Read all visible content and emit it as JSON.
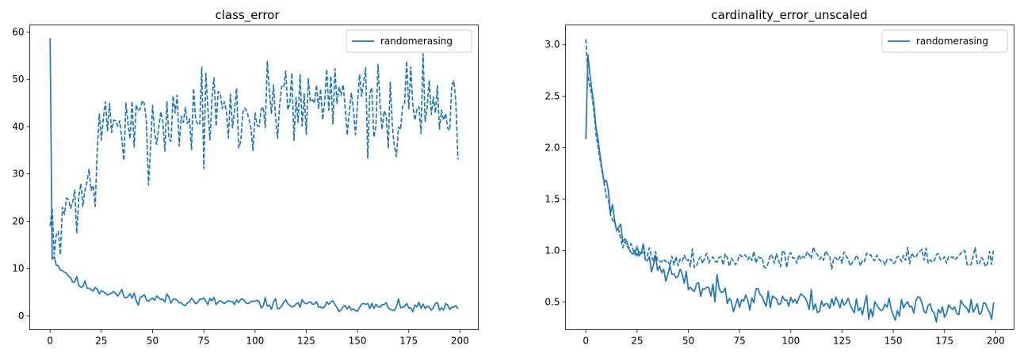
{
  "colors": {
    "series": "#1f77b4",
    "axis": "#000000",
    "legend_border": "#cccccc"
  },
  "chart_data": [
    {
      "type": "line",
      "title": "class_error",
      "xlabel": "",
      "ylabel": "",
      "xlim": [
        -9.95,
        208.95
      ],
      "ylim": [
        -2.93,
        61.5
      ],
      "xticks": [
        0,
        25,
        50,
        75,
        100,
        125,
        150,
        175,
        200
      ],
      "yticks": [
        0,
        10,
        20,
        30,
        40,
        50,
        60
      ],
      "legend": {
        "placement": "top-right",
        "entries": [
          {
            "label": "randomerasing",
            "style": "solid"
          }
        ]
      },
      "series": [
        {
          "name": "randomerasing",
          "style": "solid",
          "anchors": [
            [
              0,
              58.7
            ],
            [
              1,
              12.0
            ],
            [
              2,
              12.5
            ],
            [
              3,
              11.0
            ],
            [
              5,
              10.0
            ],
            [
              8,
              9.0
            ],
            [
              10,
              8.0
            ],
            [
              15,
              6.5
            ],
            [
              20,
              6.0
            ],
            [
              25,
              5.5
            ],
            [
              30,
              4.8
            ],
            [
              40,
              4.0
            ],
            [
              50,
              3.6
            ],
            [
              75,
              3.0
            ],
            [
              100,
              2.6
            ],
            [
              125,
              2.3
            ],
            [
              150,
              2.0
            ],
            [
              175,
              1.8
            ],
            [
              199,
              1.4
            ]
          ],
          "noise": 0.6,
          "seed": 11
        },
        {
          "name": "",
          "style": "dashed",
          "anchors": [
            [
              0,
              19.0
            ],
            [
              1,
              22.8
            ],
            [
              2,
              13.0
            ],
            [
              3,
              16.0
            ],
            [
              5,
              17.0
            ],
            [
              8,
              23.0
            ],
            [
              12,
              26.0
            ],
            [
              15,
              25.0
            ],
            [
              20,
              28.0
            ],
            [
              25,
              38.0
            ],
            [
              30,
              42.0
            ],
            [
              40,
              38.0
            ],
            [
              50,
              41.0
            ],
            [
              60,
              42.0
            ],
            [
              75,
              43.0
            ],
            [
              100,
              41.5
            ],
            [
              115,
              48.0
            ],
            [
              125,
              44.0
            ],
            [
              142,
              50.0
            ],
            [
              150,
              44.0
            ],
            [
              165,
              40.0
            ],
            [
              175,
              46.0
            ],
            [
              190,
              44.0
            ],
            [
              199,
              41.0
            ]
          ],
          "noise": 5.0,
          "seed": 7
        }
      ]
    },
    {
      "type": "line",
      "title": "cardinality_error_unscaled",
      "xlabel": "",
      "ylabel": "",
      "xlim": [
        -9.95,
        208.95
      ],
      "ylim": [
        0.233,
        3.19
      ],
      "xticks": [
        0,
        25,
        50,
        75,
        100,
        125,
        150,
        175,
        200
      ],
      "yticks": [
        0.5,
        1.0,
        1.5,
        2.0,
        2.5,
        3.0
      ],
      "ytick_labels": [
        "0.5",
        "1.0",
        "1.5",
        "2.0",
        "2.5",
        "3.0"
      ],
      "legend": {
        "placement": "top-right",
        "entries": [
          {
            "label": "randomerasing",
            "style": "solid"
          }
        ]
      },
      "series": [
        {
          "name": "randomerasing",
          "style": "solid",
          "anchors": [
            [
              0,
              2.08
            ],
            [
              1,
              2.9
            ],
            [
              3,
              2.55
            ],
            [
              5,
              2.2
            ],
            [
              8,
              1.8
            ],
            [
              10,
              1.6
            ],
            [
              15,
              1.25
            ],
            [
              20,
              1.1
            ],
            [
              25,
              1.0
            ],
            [
              30,
              0.9
            ],
            [
              40,
              0.78
            ],
            [
              50,
              0.68
            ],
            [
              60,
              0.62
            ],
            [
              75,
              0.55
            ],
            [
              100,
              0.52
            ],
            [
              125,
              0.48
            ],
            [
              150,
              0.45
            ],
            [
              175,
              0.44
            ],
            [
              199,
              0.41
            ]
          ],
          "noise": 0.06,
          "seed": 23
        },
        {
          "name": "",
          "style": "dashed",
          "anchors": [
            [
              0,
              3.05
            ],
            [
              1,
              2.7
            ],
            [
              3,
              2.5
            ],
            [
              5,
              2.15
            ],
            [
              8,
              1.75
            ],
            [
              10,
              1.5
            ],
            [
              15,
              1.2
            ],
            [
              20,
              1.1
            ],
            [
              25,
              1.0
            ],
            [
              30,
              0.95
            ],
            [
              40,
              0.93
            ],
            [
              50,
              0.92
            ],
            [
              75,
              0.92
            ],
            [
              100,
              0.93
            ],
            [
              125,
              0.92
            ],
            [
              150,
              0.92
            ],
            [
              175,
              0.92
            ],
            [
              199,
              0.94
            ]
          ],
          "noise": 0.05,
          "seed": 5
        }
      ]
    }
  ]
}
